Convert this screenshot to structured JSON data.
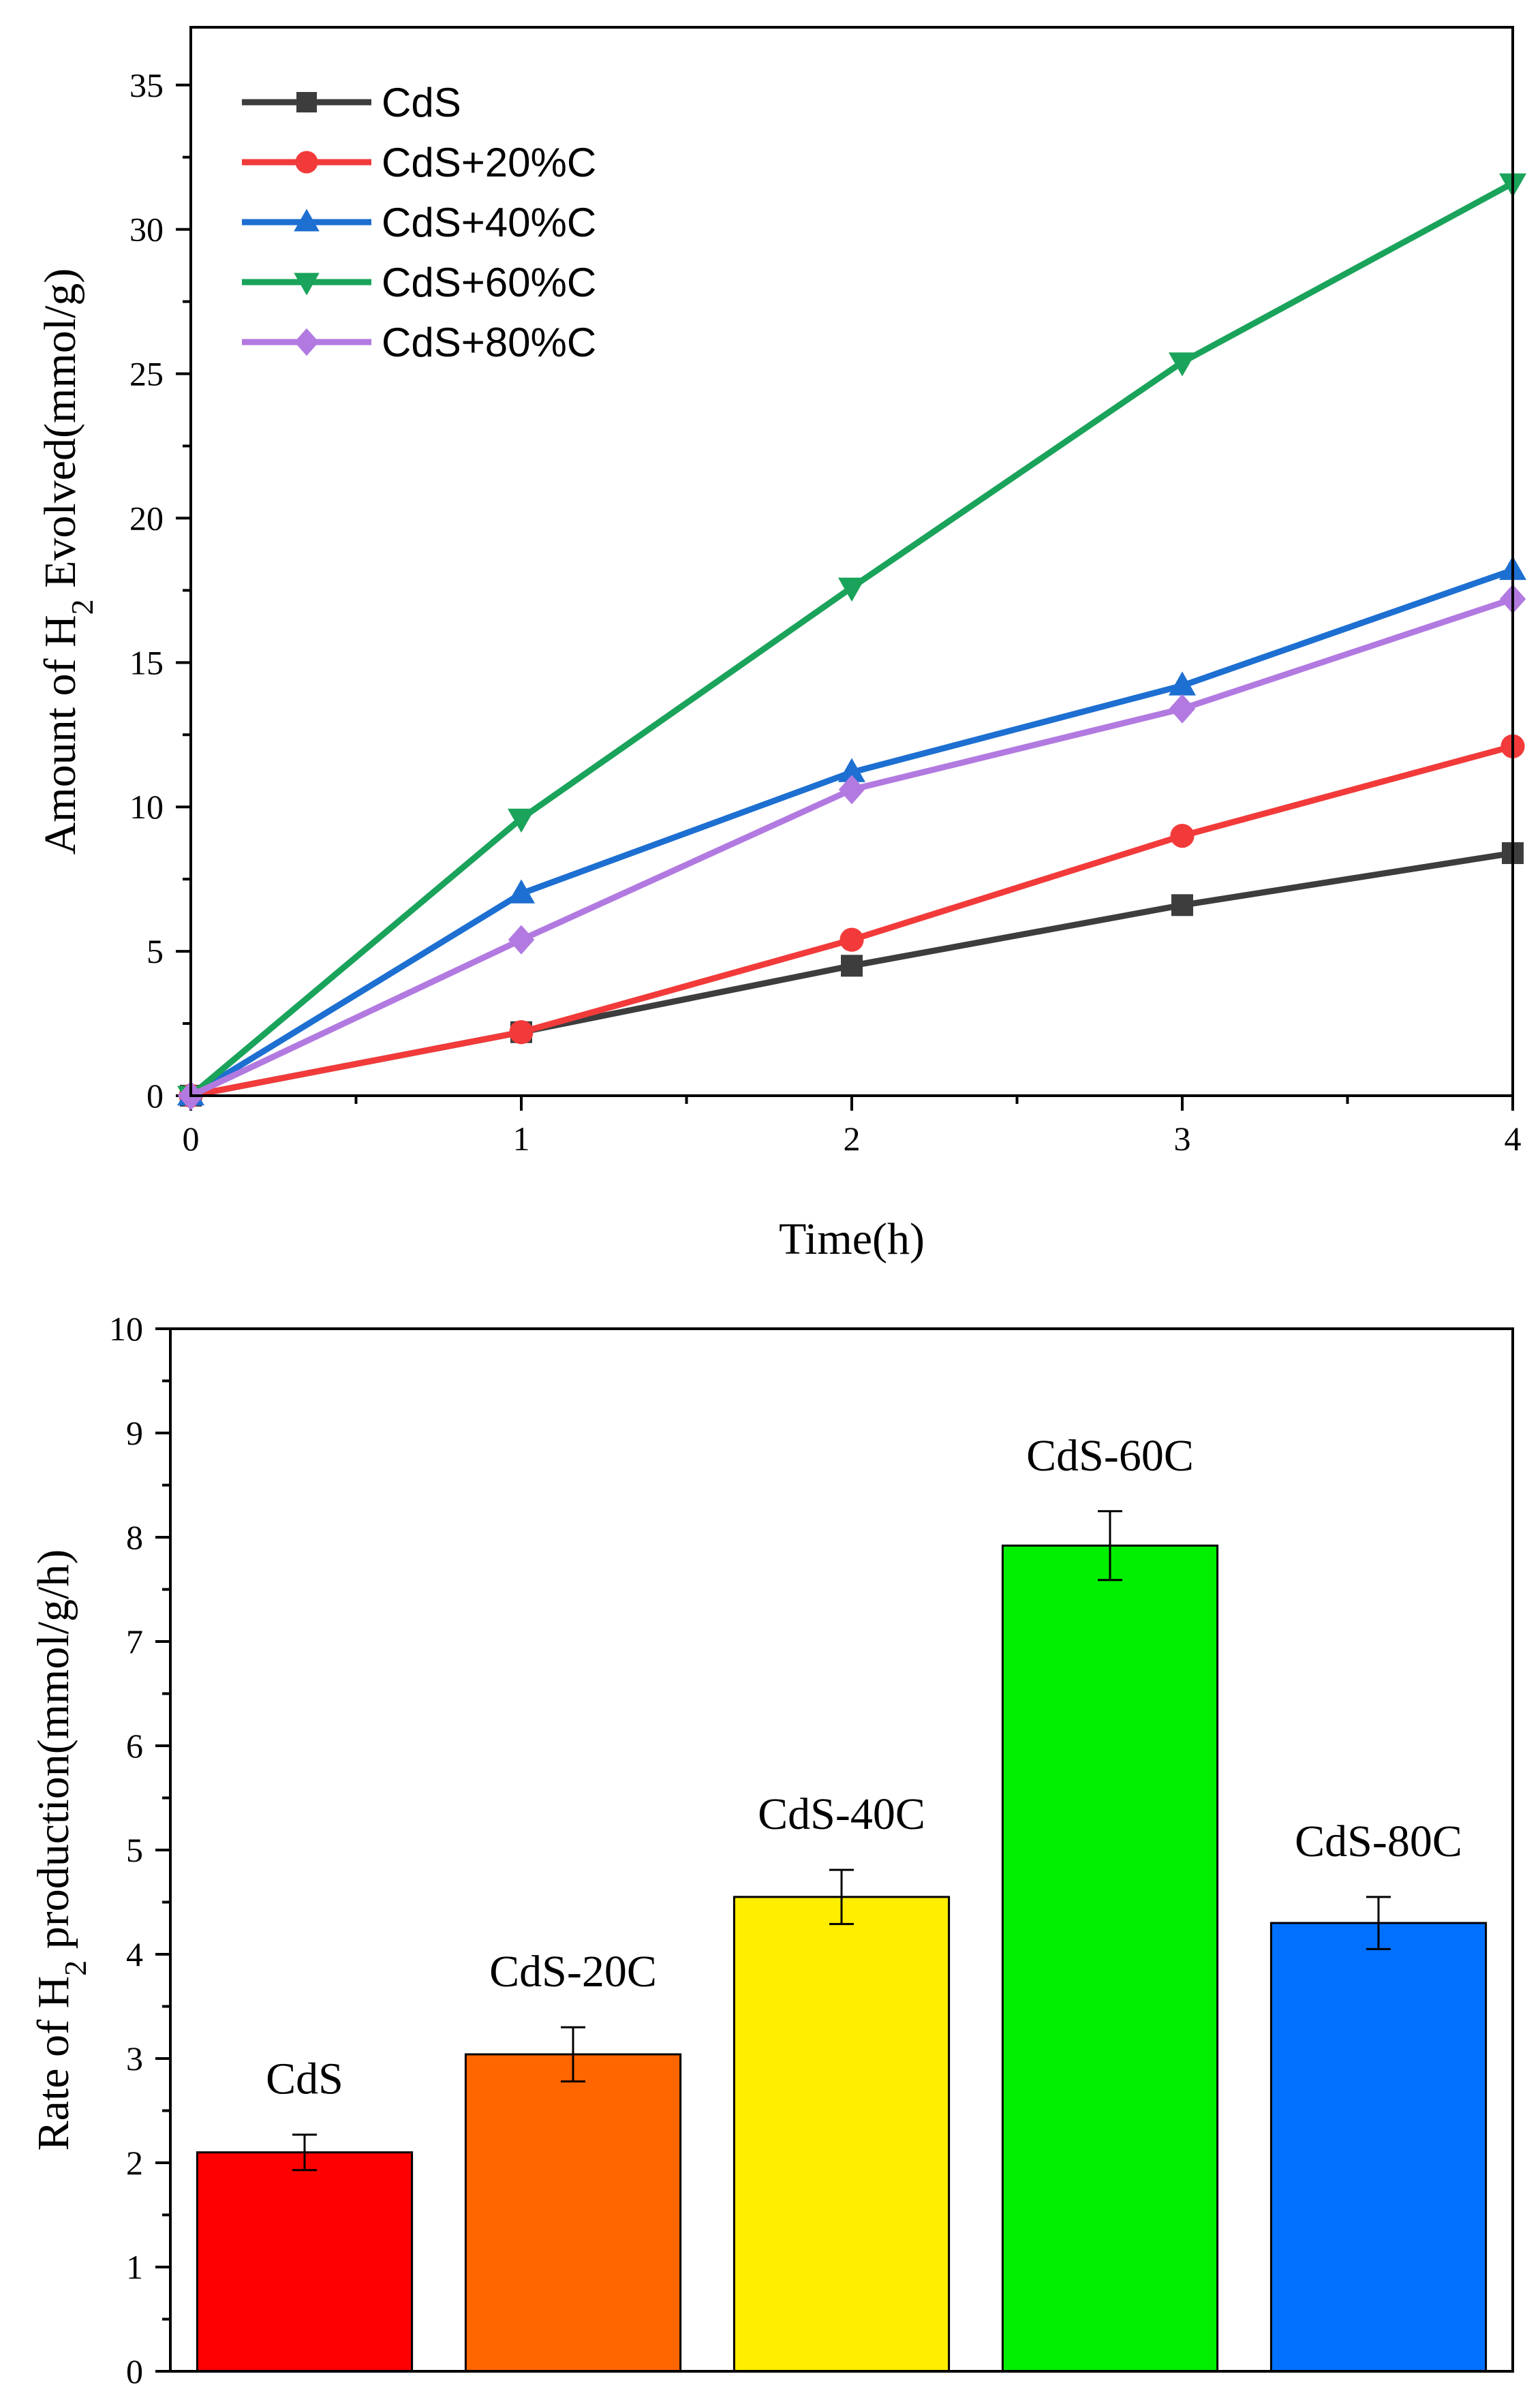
{
  "chart_data": [
    {
      "type": "line",
      "title": "",
      "xlabel": "Time(h)",
      "ylabel": "Amount of H2 Evolved(mmol/g)",
      "xlim": [
        0,
        4
      ],
      "ylim": [
        0,
        37
      ],
      "x_ticks": [
        0,
        1,
        2,
        3,
        4
      ],
      "y_ticks": [
        0,
        5,
        10,
        15,
        20,
        25,
        30,
        35
      ],
      "legend_position": "top-left",
      "x": [
        0,
        1,
        2,
        3,
        4
      ],
      "series": [
        {
          "name": "CdS",
          "color": "#3d3d3d",
          "marker": "square",
          "values": [
            0,
            2.2,
            4.5,
            6.6,
            8.4
          ]
        },
        {
          "name": "CdS+20%C",
          "color": "#f23a3a",
          "marker": "circle",
          "values": [
            0,
            2.2,
            5.4,
            9.0,
            12.1
          ]
        },
        {
          "name": "CdS+40%C",
          "color": "#1d6fd1",
          "marker": "triangle-up",
          "values": [
            0,
            7.0,
            11.2,
            14.2,
            18.2
          ]
        },
        {
          "name": "CdS+60%C",
          "color": "#1aa35a",
          "marker": "triangle-down",
          "values": [
            0,
            9.6,
            17.6,
            25.4,
            31.6
          ]
        },
        {
          "name": "CdS+80%C",
          "color": "#b27ae0",
          "marker": "diamond",
          "values": [
            0,
            5.4,
            10.6,
            13.4,
            17.2
          ]
        }
      ]
    },
    {
      "type": "bar",
      "title": "",
      "xlabel": "",
      "ylabel": "Rate of H2 production(mmol/g/h)",
      "ylim": [
        0,
        10
      ],
      "y_ticks": [
        0,
        1,
        2,
        3,
        4,
        5,
        6,
        7,
        8,
        9,
        10
      ],
      "categories": [
        "CdS",
        "CdS-20C",
        "CdS-40C",
        "CdS-60C",
        "CdS-80C"
      ],
      "values": [
        2.1,
        3.04,
        4.55,
        7.92,
        4.3
      ],
      "errors": [
        0.17,
        0.26,
        0.26,
        0.33,
        0.25
      ],
      "colors": [
        "#ff0000",
        "#ff6600",
        "#ffee00",
        "#00ee00",
        "#0070ff"
      ]
    }
  ]
}
